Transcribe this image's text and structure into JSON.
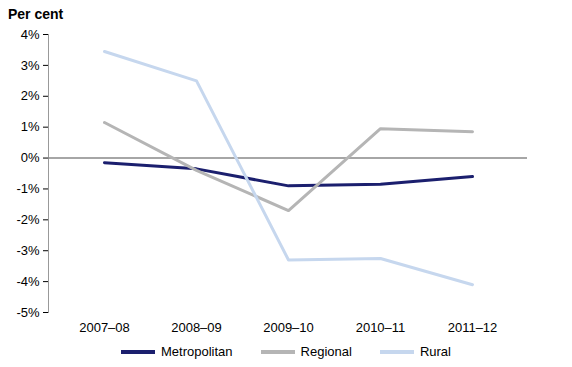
{
  "chart_data": {
    "type": "line",
    "y_label": "Per cent",
    "categories": [
      "2007–08",
      "2008–09",
      "2009–10",
      "2010–11",
      "2011–12"
    ],
    "series": [
      {
        "name": "Metropolitan",
        "color": "#1b1f6e",
        "values": [
          -0.15,
          -0.35,
          -0.9,
          -0.85,
          -0.6
        ]
      },
      {
        "name": "Regional",
        "color": "#b5b5b5",
        "values": [
          1.15,
          -0.4,
          -1.7,
          0.95,
          0.85
        ]
      },
      {
        "name": "Rural",
        "color": "#c6d7ee",
        "values": [
          3.45,
          2.5,
          -3.3,
          -3.25,
          -4.1
        ]
      }
    ],
    "ylim": [
      -5,
      4
    ],
    "yticks": [
      {
        "value": -5,
        "label": "-5%"
      },
      {
        "value": -4,
        "label": "-4%"
      },
      {
        "value": -3,
        "label": "-3%"
      },
      {
        "value": -2,
        "label": "-2%"
      },
      {
        "value": -1,
        "label": "-1%"
      },
      {
        "value": 0,
        "label": "0%"
      },
      {
        "value": 1,
        "label": "1%"
      },
      {
        "value": 2,
        "label": "2%"
      },
      {
        "value": 3,
        "label": "3%"
      },
      {
        "value": 4,
        "label": "4%"
      }
    ],
    "grid": false,
    "legend": "bottom"
  }
}
